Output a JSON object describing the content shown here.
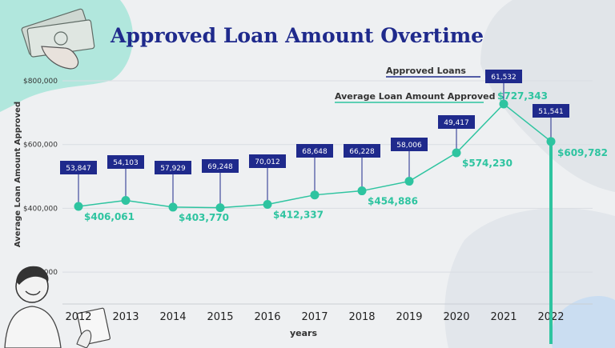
{
  "chart_data": {
    "type": "line",
    "title": "Approved Loan Amount Overtime",
    "xlabel": "years",
    "ylabel": "Average Loan Amount Approved",
    "categories": [
      "2012",
      "2013",
      "2014",
      "2015",
      "2016",
      "2017",
      "2018",
      "2019",
      "2020",
      "2021",
      "2022"
    ],
    "ylim": [
      100000,
      800000
    ],
    "yticks": [
      200000,
      400000,
      600000,
      800000
    ],
    "ytick_labels": [
      "$200,000",
      "$400,000",
      "$600,000",
      "$800,000"
    ],
    "grid": "horizontal",
    "series": [
      {
        "name": "Average Loan Amount Approved",
        "color": "#2ec4a0",
        "values": [
          406061,
          425000,
          403770,
          402000,
          412337,
          442000,
          454886,
          485000,
          574230,
          727343,
          609782
        ],
        "labels": [
          "$406,061",
          "",
          "$403,770",
          "",
          "$412,337",
          "",
          "$454,886",
          "",
          "$574,230",
          "$727,343",
          "$609,782"
        ]
      },
      {
        "name": "Approved Loans",
        "color": "#1f2a8c",
        "values": [
          53847,
          54103,
          57929,
          69248,
          70012,
          68648,
          66228,
          58006,
          49417,
          61532,
          51541
        ],
        "labels": [
          "53,847",
          "54,103",
          "57,929",
          "69,248",
          "70,012",
          "68,648",
          "66,228",
          "58,006",
          "49,417",
          "61,532",
          "51,541"
        ]
      }
    ],
    "legend": [
      {
        "label": "Approved Loans",
        "color": "#1f2a8c"
      },
      {
        "label": "Average Loan Amount Approved",
        "color": "#2ec4a0"
      }
    ]
  }
}
